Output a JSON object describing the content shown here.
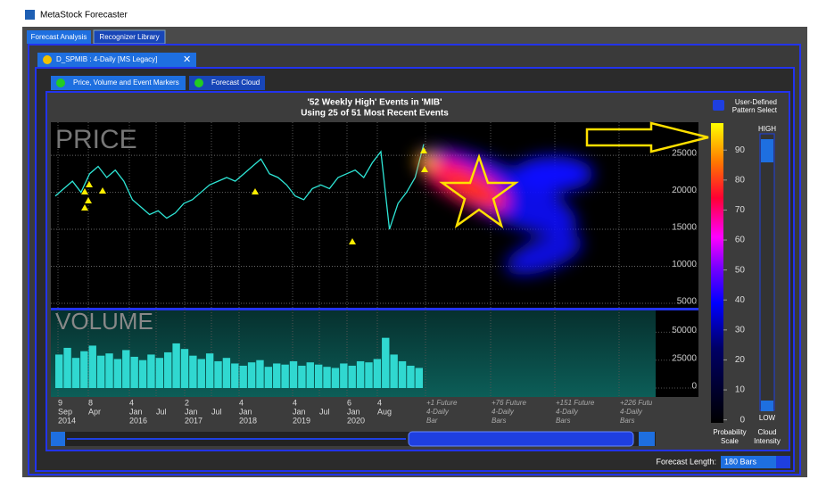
{
  "window": {
    "title": "MetaStock Forecaster"
  },
  "tabs": [
    "Forecast Analysis",
    "Recognizer Library"
  ],
  "document_tab": "D_SPMIB : 4-Daily  [MS Legacy]",
  "sub_tabs": [
    "Price, Volume and Event Markers",
    "Forecast Cloud"
  ],
  "pattern_select": [
    "User-Defined",
    "Pattern Select"
  ],
  "chart": {
    "title": [
      "'52 Weekly High' Events in 'MIB'",
      "Using 25 of 51 Most Recent Events"
    ],
    "price": {
      "label": "PRICE",
      "ylim": [
        4400,
        29470
      ],
      "yticks": [
        5000,
        10000,
        15000,
        20000,
        25000
      ],
      "values": [
        19500,
        20500,
        21500,
        20000,
        22500,
        23500,
        22000,
        23000,
        21500,
        19000,
        18000,
        17000,
        17500,
        16500,
        17200,
        18500,
        19000,
        20000,
        21000,
        21500,
        22000,
        21500,
        22500,
        23500,
        24500,
        22500,
        22000,
        21000,
        19500,
        19000,
        20500,
        21000,
        20500,
        22000,
        22500,
        23000,
        22000,
        24000,
        25500,
        15000,
        18500,
        20000,
        22000,
        26500
      ]
    },
    "volume": {
      "label": "VOLUME",
      "ylim": [
        -8000,
        69500
      ],
      "yticks": [
        0,
        25000,
        50000
      ],
      "values": [
        30000,
        36000,
        27000,
        33000,
        38000,
        29000,
        31000,
        26000,
        34000,
        28000,
        25000,
        30000,
        27000,
        32000,
        40000,
        35000,
        29000,
        26000,
        31000,
        24000,
        27000,
        22000,
        20000,
        23000,
        25000,
        19000,
        22000,
        21000,
        24000,
        20000,
        23000,
        21000,
        19000,
        18000,
        22000,
        20000,
        24000,
        23000,
        26000,
        45000,
        30000,
        24000,
        20000,
        18000
      ]
    },
    "x_labels": [
      {
        "day": "9",
        "month": "Sep",
        "year": "2014"
      },
      {
        "day": "8",
        "month": "Apr"
      },
      {
        "day": "4",
        "month": "Jan",
        "year": "2016"
      },
      {
        "month": "Jul"
      },
      {
        "day": "2",
        "month": "Jan",
        "year": "2017"
      },
      {
        "month": "Jul"
      },
      {
        "day": "4",
        "month": "Jan",
        "year": "2018"
      },
      {
        "day": "4",
        "month": "Jan",
        "year": "2019"
      },
      {
        "month": "Jul"
      },
      {
        "day": "6",
        "month": "Jan",
        "year": "2020"
      },
      {
        "day": "4",
        "month": "Aug"
      }
    ],
    "future_labels": [
      [
        "+1 Future",
        "4-Daily",
        "Bar"
      ],
      [
        "+76 Future",
        "4-Daily",
        "Bars"
      ],
      [
        "+151 Future",
        "4-Daily",
        "Bars"
      ],
      [
        "+226 Futu",
        "4-Daily",
        "Bars"
      ]
    ]
  },
  "probability_scale": {
    "lim": [
      -1,
      99
    ],
    "ticks": [
      0,
      10,
      20,
      30,
      40,
      50,
      60,
      70,
      80,
      90
    ],
    "label": [
      "Probability",
      "Scale"
    ]
  },
  "cloud_intensity": {
    "high": "HIGH",
    "low": "LOW",
    "label": [
      "Cloud",
      "Intensity"
    ]
  },
  "forecast_length": {
    "label": "Forecast Length:",
    "value": "180 Bars"
  }
}
